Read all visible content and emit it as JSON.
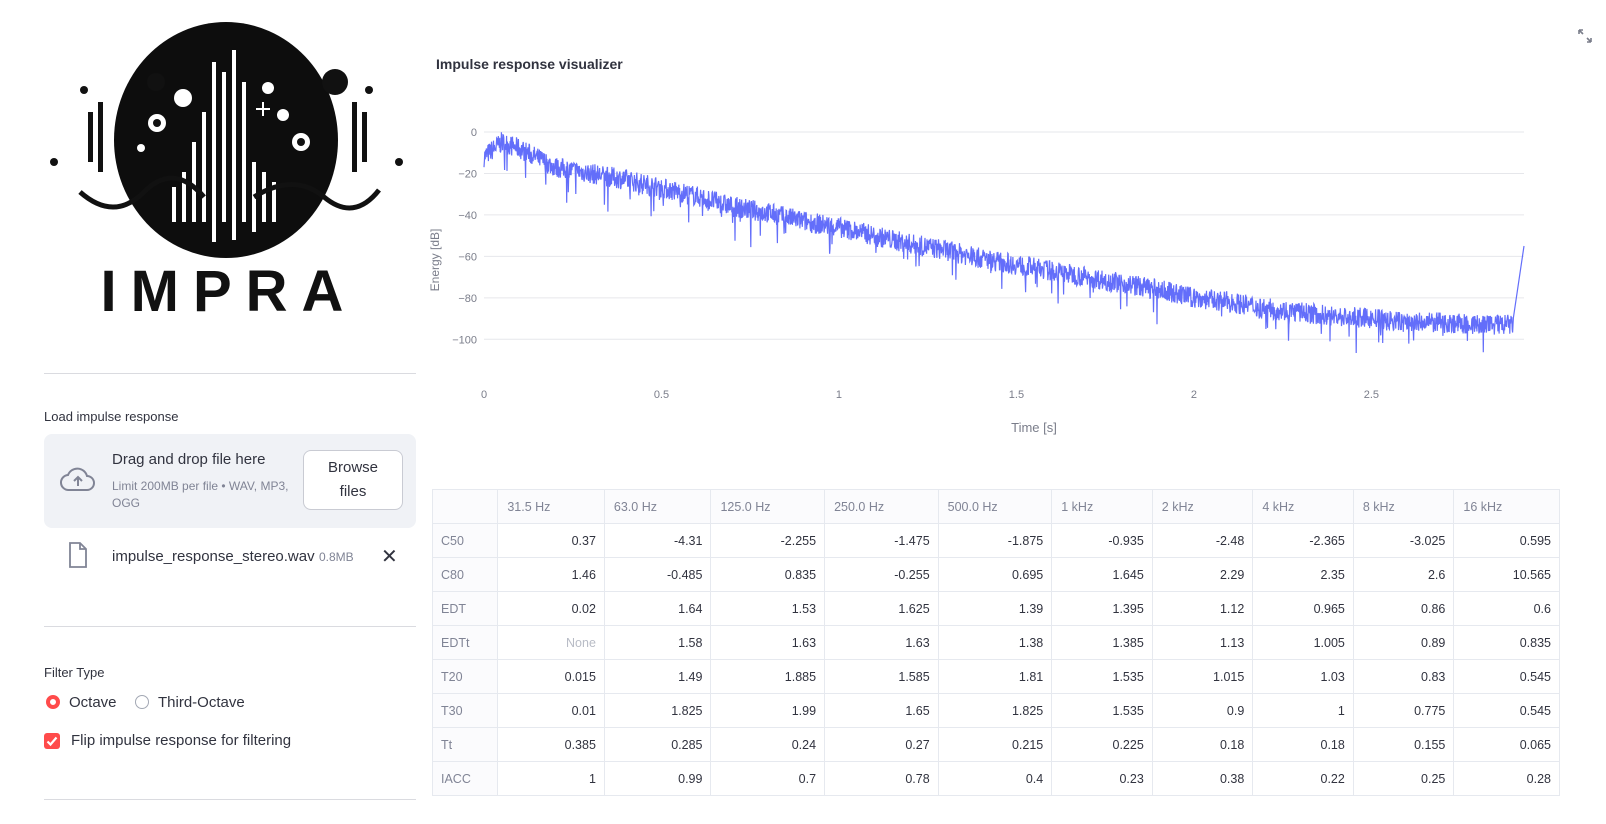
{
  "sidebar": {
    "logo_text": "IMPRA",
    "upload_label": "Load impulse response",
    "dropzone_title": "Drag and drop file here",
    "dropzone_sub": "Limit 200MB per file • WAV, MP3, OGG",
    "browse_label": "Browse files",
    "file_name": "impulse_response_stereo.wav",
    "file_size": "0.8MB",
    "filter_label": "Filter Type",
    "filter_options": [
      "Octave",
      "Third-Octave"
    ],
    "filter_selected": "Octave",
    "flip_label": "Flip impulse response for filtering",
    "flip_checked": true
  },
  "main": {
    "title": "Impulse response visualizer"
  },
  "chart_data": {
    "type": "line",
    "title": "",
    "xlabel": "Time [s]",
    "ylabel": "Energy [dB]",
    "xlim": [
      0,
      2.93
    ],
    "ylim": [
      -110,
      0
    ],
    "x_ticks": [
      0,
      0.5,
      1,
      1.5,
      2,
      2.5
    ],
    "y_ticks": [
      0,
      -20,
      -40,
      -60,
      -80,
      -100
    ],
    "grid": true,
    "color": "#636efa",
    "series": [
      {
        "x": [
          0,
          0.05,
          0.1,
          0.2,
          0.3,
          0.4,
          0.5,
          0.6,
          0.7,
          0.8,
          0.9,
          1.0,
          1.1,
          1.2,
          1.3,
          1.4,
          1.5,
          1.6,
          1.7,
          1.8,
          1.9,
          2.0,
          2.1,
          2.2,
          2.3,
          2.4,
          2.5,
          2.6,
          2.7,
          2.8,
          2.9,
          2.93
        ],
        "values": [
          -12,
          -5,
          -8,
          -17,
          -20,
          -23,
          -27,
          -31,
          -36,
          -39,
          -43,
          -46,
          -50,
          -54,
          -57,
          -61,
          -64,
          -67,
          -70,
          -73,
          -76,
          -80,
          -82,
          -85,
          -87,
          -89,
          -90,
          -92,
          -92,
          -93,
          -93,
          -55
        ]
      }
    ]
  },
  "table": {
    "columns": [
      "31.5 Hz",
      "63.0 Hz",
      "125.0 Hz",
      "250.0 Hz",
      "500.0 Hz",
      "1 kHz",
      "2 kHz",
      "4 kHz",
      "8 kHz",
      "16 kHz"
    ],
    "rows": [
      {
        "label": "C50",
        "values": [
          "0.37",
          "-4.31",
          "-2.255",
          "-1.475",
          "-1.875",
          "-0.935",
          "-2.48",
          "-2.365",
          "-3.025",
          "0.595"
        ]
      },
      {
        "label": "C80",
        "values": [
          "1.46",
          "-0.485",
          "0.835",
          "-0.255",
          "0.695",
          "1.645",
          "2.29",
          "2.35",
          "2.6",
          "10.565"
        ]
      },
      {
        "label": "EDT",
        "values": [
          "0.02",
          "1.64",
          "1.53",
          "1.625",
          "1.39",
          "1.395",
          "1.12",
          "0.965",
          "0.86",
          "0.6"
        ]
      },
      {
        "label": "EDTt",
        "values": [
          "None",
          "1.58",
          "1.63",
          "1.63",
          "1.38",
          "1.385",
          "1.13",
          "1.005",
          "0.89",
          "0.835"
        ]
      },
      {
        "label": "T20",
        "values": [
          "0.015",
          "1.49",
          "1.885",
          "1.585",
          "1.81",
          "1.535",
          "1.015",
          "1.03",
          "0.83",
          "0.545"
        ]
      },
      {
        "label": "T30",
        "values": [
          "0.01",
          "1.825",
          "1.99",
          "1.65",
          "1.825",
          "1.535",
          "0.9",
          "1",
          "0.775",
          "0.545"
        ]
      },
      {
        "label": "Tt",
        "values": [
          "0.385",
          "0.285",
          "0.24",
          "0.27",
          "0.215",
          "0.225",
          "0.18",
          "0.18",
          "0.155",
          "0.065"
        ]
      },
      {
        "label": "IACC",
        "values": [
          "1",
          "0.99",
          "0.7",
          "0.78",
          "0.4",
          "0.23",
          "0.38",
          "0.22",
          "0.25",
          "0.28"
        ]
      }
    ]
  }
}
